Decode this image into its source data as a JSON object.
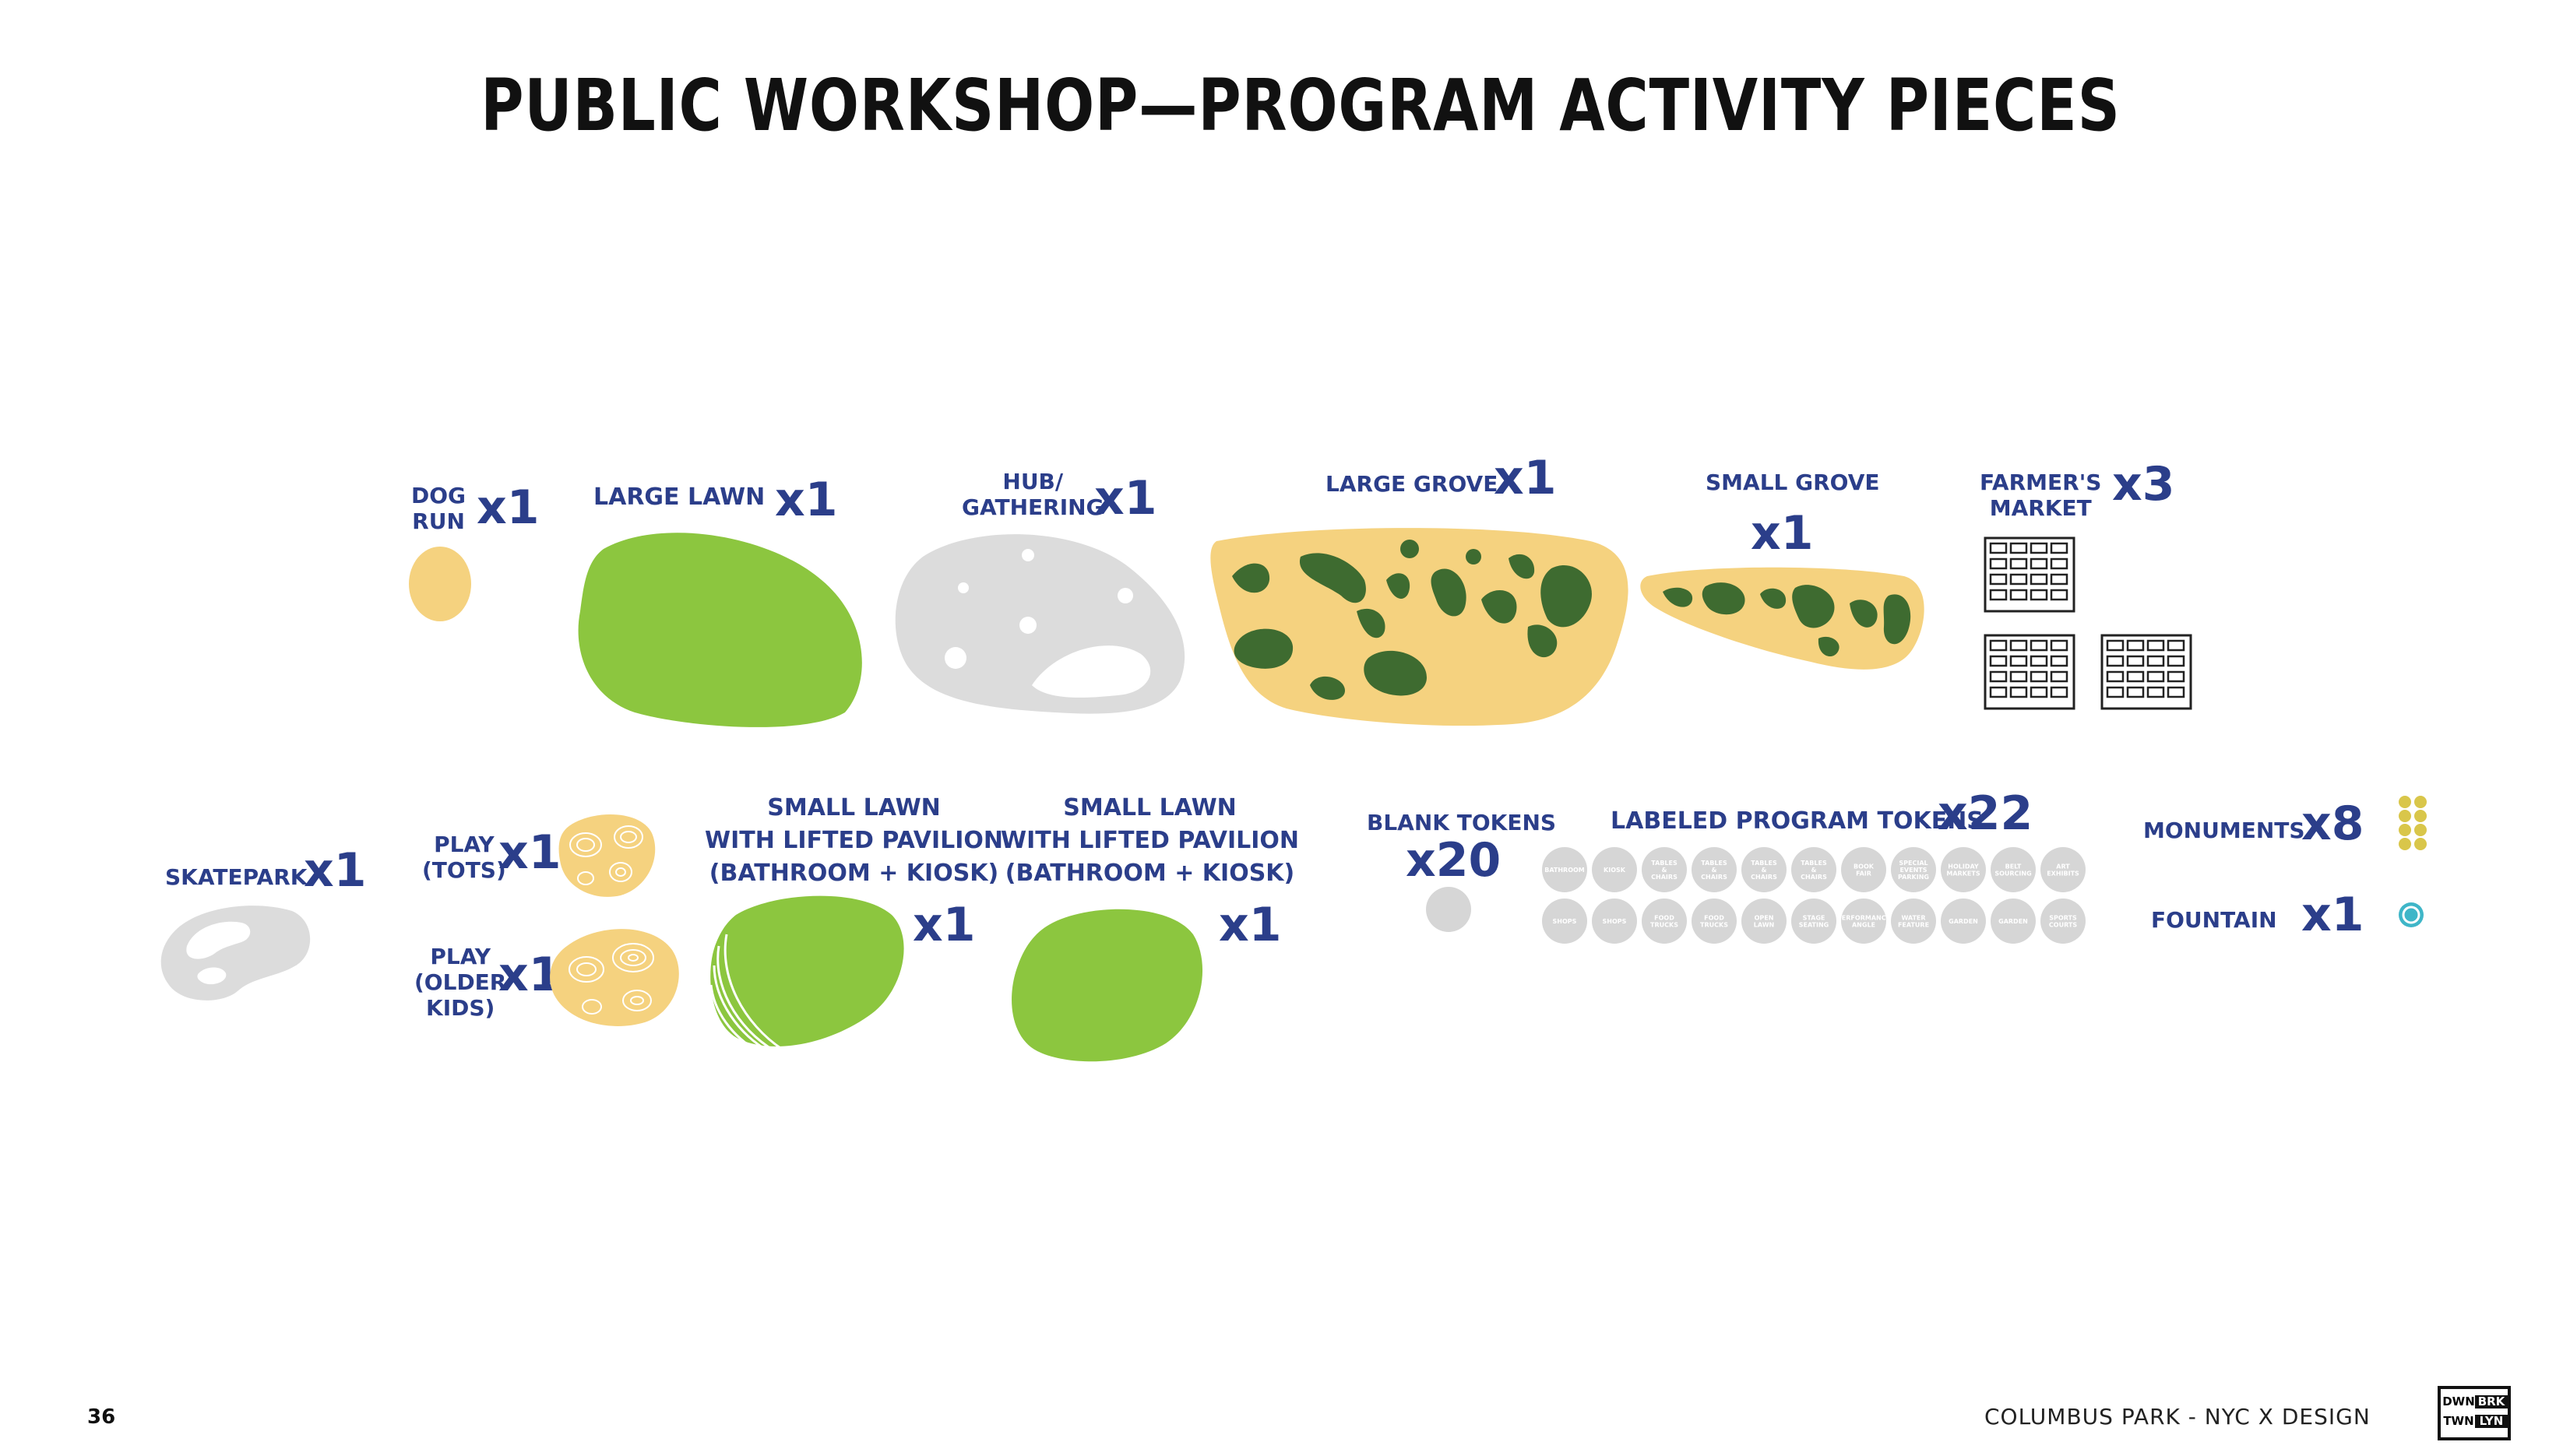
{
  "title": "PUBLIC WORKSHOP—PROGRAM ACTIVITY PIECES",
  "pieces": {
    "dog_run": {
      "label_l1": "DOG",
      "label_l2": "RUN",
      "count": "x1"
    },
    "large_lawn": {
      "label": "LARGE LAWN",
      "count": "x1"
    },
    "hub": {
      "label_l1": "HUB/",
      "label_l2": "GATHERING",
      "count": "x1"
    },
    "large_grove": {
      "label": "LARGE GROVE",
      "count": "x1"
    },
    "small_grove": {
      "label": "SMALL GROVE",
      "count": "x1"
    },
    "farmers_market": {
      "label_l1": "FARMER'S",
      "label_l2": "MARKET",
      "count": "x3"
    },
    "skatepark": {
      "label": "SKATEPARK",
      "count": "x1"
    },
    "play_tots": {
      "label_l1": "PLAY",
      "label_l2": "(TOTS)",
      "count": "x1"
    },
    "play_older": {
      "label_l1": "PLAY",
      "label_l2": "(OLDER",
      "label_l3": "KIDS)",
      "count": "x1"
    },
    "small_lawn_1": {
      "label_l1": "SMALL LAWN",
      "label_l2": "WITH LIFTED PAVILION",
      "label_l3": "(BATHROOM + KIOSK)",
      "count": "x1"
    },
    "small_lawn_2": {
      "label_l1": "SMALL LAWN",
      "label_l2": "WITH LIFTED PAVILION",
      "label_l3": "(BATHROOM + KIOSK)",
      "count": "x1"
    },
    "blank_tokens": {
      "label": "BLANK TOKENS",
      "count": "x20"
    },
    "labeled_tokens": {
      "label": "LABELED PROGRAM TOKENS",
      "count": "x22",
      "row1": [
        "BATHROOM",
        "KIOSK",
        "TABLES & CHAIRS",
        "TABLES & CHAIRS",
        "TABLES & CHAIRS",
        "TABLES & CHAIRS",
        "BOOK FAIR",
        "SPECIAL EVENTS PARKING",
        "HOLIDAY MARKETS",
        "BELT SOURCING",
        "ART EXHIBITS"
      ],
      "row2": [
        "SHOPS",
        "SHOPS",
        "FOOD TRUCKS",
        "FOOD TRUCKS",
        "OPEN LAWN",
        "STAGE SEATING",
        "PERFORMANCE ANGLE",
        "WATER FEATURE",
        "GARDEN",
        "GARDEN",
        "SPORTS COURTS"
      ]
    },
    "monuments": {
      "label": "MONUMENTS",
      "count": "x8"
    },
    "fountain": {
      "label": "FOUNTAIN",
      "count": "x1"
    }
  },
  "colors": {
    "navy": "#2b3e8a",
    "lawn": "#8cc63f",
    "sand": "#f5d27f",
    "grove_dark": "#3e6b30",
    "gray": "#dcdcdc",
    "token_gray": "#d6d6d6",
    "monument": "#d9c64a",
    "fountain": "#3fb6c8"
  },
  "footer": {
    "page_number": "36",
    "caption": "COLUMBUS PARK - NYC X DESIGN",
    "logo": {
      "a": "DWN",
      "b": "BRK",
      "c": "TWN",
      "d": "LYN"
    }
  }
}
